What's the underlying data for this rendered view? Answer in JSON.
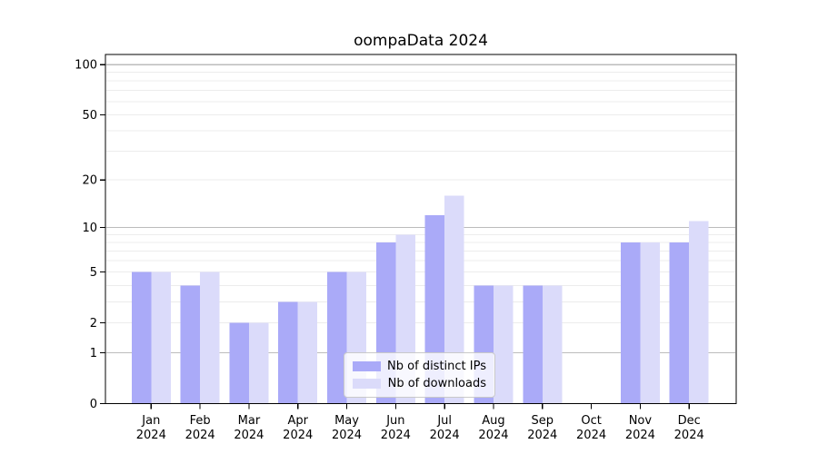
{
  "title": "oompaData 2024",
  "chart_data": {
    "type": "bar",
    "title": "oompaData 2024",
    "categories": [
      "Jan",
      "Feb",
      "Mar",
      "Apr",
      "May",
      "Jun",
      "Jul",
      "Aug",
      "Sep",
      "Oct",
      "Nov",
      "Dec"
    ],
    "category_year": "2024",
    "series": [
      {
        "name": "Nb of distinct IPs",
        "color": "#aaaaf8",
        "values": [
          5,
          4,
          2,
          3,
          5,
          8,
          12,
          4,
          4,
          0,
          8,
          8
        ]
      },
      {
        "name": "Nb of downloads",
        "color": "#dbdbfa",
        "values": [
          5,
          5,
          2,
          3,
          5,
          9,
          16,
          4,
          4,
          0,
          8,
          11
        ]
      }
    ],
    "y_axis": {
      "scale": "log1p",
      "ticks": [
        0,
        1,
        2,
        5,
        10,
        20,
        50,
        100
      ],
      "major_gridlines": [
        1,
        10,
        100
      ],
      "minor_gridlines": [
        2,
        3,
        4,
        5,
        6,
        7,
        8,
        9,
        20,
        30,
        40,
        50,
        60,
        70,
        80,
        90
      ],
      "range": [
        0,
        115
      ]
    },
    "legend": {
      "entries": [
        "Nb of distinct IPs",
        "Nb of downloads"
      ],
      "position": "lower-center"
    },
    "colors": {
      "spine": "#000000",
      "major_grid": "#bcbcbc",
      "minor_grid": "#ececec",
      "text": "#000000",
      "background": "#ffffff"
    }
  }
}
